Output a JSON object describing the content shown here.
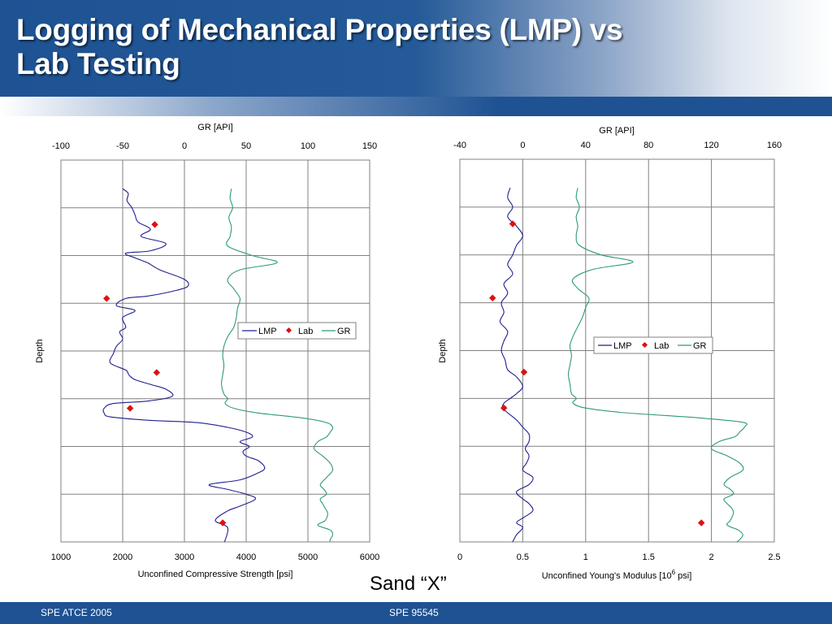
{
  "slide": {
    "title": "Logging of Mechanical Properties (LMP) vs Lab Testing",
    "title_line1": "Logging of Mechanical Properties (LMP) vs",
    "title_line2": "Lab Testing",
    "sand_label": "Sand “X”",
    "footer_left": "SPE ATCE 2005",
    "footer_right": "SPE 95545"
  },
  "colors": {
    "brand_blue": "#1e5293",
    "lmp": "#1f1f8f",
    "lab": "#dd1111",
    "gr": "#2e9a78"
  },
  "chart_data": [
    {
      "type": "line",
      "xlabel": "Unconfined Compressive Strength [psi]",
      "x2label": "GR [API]",
      "ylabel": "Depth",
      "xlim": [
        1000,
        6000
      ],
      "x2lim": [
        -100,
        150
      ],
      "x_ticks": [
        1000,
        2000,
        3000,
        4000,
        5000,
        6000
      ],
      "x2_ticks": [
        -100,
        -50,
        0,
        50,
        100,
        150
      ],
      "depth_range": [
        0,
        8
      ],
      "grid": true,
      "legend": "center-right",
      "series": [
        {
          "name": "LMP",
          "kind": "line",
          "axis": "bottom",
          "x": [
            2000,
            2090,
            2070,
            2150,
            2200,
            2250,
            2450,
            2300,
            2700,
            2450,
            2050,
            2200,
            2400,
            2600,
            3000,
            3050,
            2800,
            2400,
            2050,
            1900,
            2200,
            2000,
            2050,
            1950,
            2000,
            1900,
            1850,
            1800,
            2050,
            2100,
            2200,
            2450,
            2700,
            2800,
            2400,
            1850,
            1700,
            1700,
            1800,
            2400,
            3200,
            3700,
            4000,
            4100,
            3900,
            4050,
            3950,
            4000,
            4200,
            4300,
            4200,
            3900,
            3400,
            3700,
            4000,
            4150,
            3900,
            3700,
            3500,
            3700,
            3650
          ],
          "depth": [
            0.6,
            0.7,
            0.85,
            1.0,
            1.15,
            1.3,
            1.45,
            1.6,
            1.75,
            1.9,
            1.95,
            2.05,
            2.15,
            2.3,
            2.5,
            2.65,
            2.75,
            2.85,
            2.9,
            3.05,
            3.15,
            3.3,
            3.5,
            3.6,
            3.75,
            3.9,
            4.05,
            4.25,
            4.4,
            4.5,
            4.6,
            4.7,
            4.8,
            4.95,
            5.05,
            5.1,
            5.2,
            5.3,
            5.38,
            5.45,
            5.5,
            5.6,
            5.7,
            5.8,
            5.9,
            6.0,
            6.1,
            6.2,
            6.3,
            6.45,
            6.55,
            6.7,
            6.8,
            6.9,
            7.0,
            7.1,
            7.25,
            7.35,
            7.55,
            7.7,
            8.0
          ]
        },
        {
          "name": "Lab",
          "kind": "marker",
          "axis": "bottom",
          "x": [
            2520,
            1740,
            2550,
            2120,
            3620
          ],
          "depth": [
            1.35,
            2.9,
            4.45,
            5.2,
            7.6
          ]
        },
        {
          "name": "GR",
          "kind": "line",
          "axis": "top",
          "x": [
            38,
            37,
            39,
            36,
            38,
            37,
            35,
            55,
            75,
            45,
            35,
            40,
            45,
            43,
            42,
            40,
            35,
            32,
            31,
            32,
            31,
            30,
            32,
            35,
            33,
            40,
            60,
            95,
            115,
            120,
            118,
            115,
            108,
            105,
            112,
            118,
            120,
            115,
            110,
            113,
            115,
            110,
            112,
            114,
            116,
            114,
            108,
            118,
            120,
            118,
            118
          ],
          "depth": [
            0.6,
            0.8,
            1.0,
            1.2,
            1.4,
            1.6,
            1.8,
            2.0,
            2.15,
            2.3,
            2.5,
            2.7,
            2.9,
            3.1,
            3.3,
            3.5,
            3.7,
            3.9,
            4.1,
            4.3,
            4.5,
            4.7,
            4.9,
            5.0,
            5.1,
            5.2,
            5.3,
            5.4,
            5.5,
            5.6,
            5.7,
            5.8,
            5.9,
            6.05,
            6.2,
            6.35,
            6.5,
            6.65,
            6.8,
            6.9,
            7.0,
            7.1,
            7.2,
            7.3,
            7.4,
            7.55,
            7.65,
            7.75,
            7.85,
            7.95,
            8.0
          ]
        }
      ]
    },
    {
      "type": "line",
      "xlabel": "Unconfined Young's Modulus [10⁶ psi]",
      "xlabel_main": "Unconfined Young's Modulus [10",
      "xlabel_sup": "6",
      "xlabel_end": " psi]",
      "x2label": "GR [API]",
      "ylabel": "Depth",
      "xlim": [
        0,
        2.5
      ],
      "x2lim": [
        -40,
        160
      ],
      "x_ticks": [
        0,
        0.5,
        1,
        1.5,
        2,
        2.5
      ],
      "x2_ticks": [
        -40,
        0,
        40,
        80,
        120,
        160
      ],
      "depth_range": [
        0,
        8
      ],
      "grid": true,
      "legend": "center-right",
      "series": [
        {
          "name": "LMP",
          "kind": "line",
          "axis": "bottom",
          "x": [
            0.4,
            0.38,
            0.42,
            0.38,
            0.45,
            0.5,
            0.45,
            0.42,
            0.38,
            0.42,
            0.35,
            0.38,
            0.33,
            0.35,
            0.32,
            0.38,
            0.35,
            0.33,
            0.36,
            0.38,
            0.45,
            0.5,
            0.45,
            0.4,
            0.35,
            0.34,
            0.38,
            0.45,
            0.5,
            0.55,
            0.55,
            0.52,
            0.55,
            0.53,
            0.5,
            0.58,
            0.55,
            0.45,
            0.5,
            0.55,
            0.58,
            0.5,
            0.45,
            0.5,
            0.45,
            0.42
          ],
          "depth": [
            0.6,
            0.8,
            1.0,
            1.2,
            1.4,
            1.6,
            1.8,
            2.0,
            2.2,
            2.4,
            2.6,
            2.8,
            3.0,
            3.2,
            3.4,
            3.6,
            3.8,
            4.0,
            4.2,
            4.4,
            4.55,
            4.75,
            4.9,
            5.0,
            5.1,
            5.2,
            5.3,
            5.45,
            5.6,
            5.75,
            5.9,
            6.05,
            6.2,
            6.35,
            6.5,
            6.65,
            6.8,
            6.95,
            7.1,
            7.2,
            7.35,
            7.5,
            7.6,
            7.7,
            7.85,
            8.0
          ]
        },
        {
          "name": "Lab",
          "kind": "marker",
          "axis": "bottom",
          "x": [
            0.42,
            0.26,
            0.51,
            0.35,
            1.92
          ],
          "depth": [
            1.35,
            2.9,
            4.45,
            5.2,
            7.6
          ]
        },
        {
          "name": "GR",
          "kind": "line",
          "axis": "top",
          "x": [
            35,
            34,
            36,
            34,
            35,
            34,
            36,
            50,
            70,
            45,
            32,
            35,
            42,
            40,
            38,
            35,
            32,
            30,
            31,
            30,
            29,
            30,
            31,
            34,
            32,
            40,
            65,
            110,
            140,
            141,
            138,
            135,
            125,
            120,
            130,
            138,
            140,
            132,
            128,
            132,
            134,
            128,
            130,
            133,
            134,
            132,
            130,
            137,
            140,
            138,
            136
          ],
          "depth": [
            0.6,
            0.8,
            1.0,
            1.2,
            1.4,
            1.6,
            1.8,
            2.0,
            2.15,
            2.3,
            2.5,
            2.7,
            2.9,
            3.1,
            3.3,
            3.5,
            3.7,
            3.9,
            4.1,
            4.3,
            4.5,
            4.7,
            4.9,
            5.0,
            5.1,
            5.2,
            5.3,
            5.4,
            5.5,
            5.6,
            5.7,
            5.8,
            5.9,
            6.05,
            6.2,
            6.35,
            6.5,
            6.65,
            6.8,
            6.9,
            7.0,
            7.1,
            7.2,
            7.3,
            7.4,
            7.55,
            7.65,
            7.75,
            7.85,
            7.95,
            8.0
          ]
        }
      ]
    }
  ]
}
